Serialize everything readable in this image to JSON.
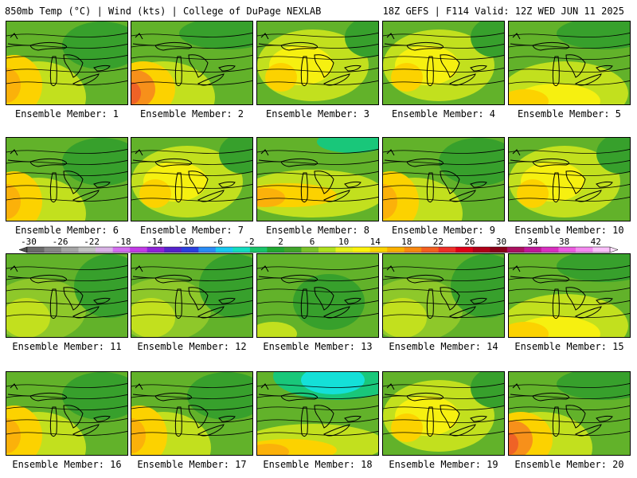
{
  "header": {
    "left": "850mb Temp (°C) | Wind (kts) | College of DuPage NEXLAB",
    "right": "18Z GEFS | F114 Valid: 12Z WED JUN 11 2025"
  },
  "members": [
    {
      "label": "Ensemble Member: 1",
      "scheme": "warm-west"
    },
    {
      "label": "Ensemble Member: 2",
      "scheme": "hot-west"
    },
    {
      "label": "Ensemble Member: 3",
      "scheme": "warm-center"
    },
    {
      "label": "Ensemble Member: 4",
      "scheme": "warm-center"
    },
    {
      "label": "Ensemble Member: 5",
      "scheme": "warm-south"
    },
    {
      "label": "Ensemble Member: 6",
      "scheme": "warm-west"
    },
    {
      "label": "Ensemble Member: 7",
      "scheme": "warm-center"
    },
    {
      "label": "Ensemble Member: 8",
      "scheme": "warm-band"
    },
    {
      "label": "Ensemble Member: 9",
      "scheme": "warm-west"
    },
    {
      "label": "Ensemble Member: 10",
      "scheme": "warm-center"
    },
    {
      "label": "Ensemble Member: 11",
      "scheme": "mild"
    },
    {
      "label": "Ensemble Member: 12",
      "scheme": "mild"
    },
    {
      "label": "Ensemble Member: 13",
      "scheme": "cool"
    },
    {
      "label": "Ensemble Member: 14",
      "scheme": "mild"
    },
    {
      "label": "Ensemble Member: 15",
      "scheme": "warm-south"
    },
    {
      "label": "Ensemble Member: 16",
      "scheme": "warm-west"
    },
    {
      "label": "Ensemble Member: 17",
      "scheme": "warm-west"
    },
    {
      "label": "Ensemble Member: 18",
      "scheme": "cool-north-warm-south"
    },
    {
      "label": "Ensemble Member: 19",
      "scheme": "warm-center"
    },
    {
      "label": "Ensemble Member: 20",
      "scheme": "hot-west"
    }
  ],
  "colorbar": {
    "tick_labels": [
      "-30",
      "-26",
      "-22",
      "-18",
      "-14",
      "-10",
      "-6",
      "-2",
      "2",
      "6",
      "10",
      "14",
      "18",
      "22",
      "26",
      "30",
      "34",
      "38",
      "42"
    ],
    "colors": [
      "#6b6b6b",
      "#888888",
      "#a5a5a5",
      "#c1c1c1",
      "#d9b3e6",
      "#d36ef0",
      "#c23ce6",
      "#8f22d9",
      "#5522cc",
      "#2b40e0",
      "#2a8cf5",
      "#18c8f0",
      "#14ddc0",
      "#19c46a",
      "#21a832",
      "#3fa52a",
      "#7ac22a",
      "#aee01e",
      "#e6f01a",
      "#fbf20c",
      "#fbd400",
      "#fbb000",
      "#f98a10",
      "#f46020",
      "#ef3028",
      "#e00018",
      "#b00018",
      "#8a0018",
      "#aa1060",
      "#c0189a",
      "#d830c0",
      "#ec5ce0",
      "#f48af0",
      "#fac0fa"
    ]
  },
  "palette": {
    "cyan": "#14e0d8",
    "teal": "#19c77a",
    "green_dk": "#37a02c",
    "green": "#62b22a",
    "green_lt": "#8ec82a",
    "yellowgreen": "#c2e01e",
    "yellow": "#f6f010",
    "gold": "#fcd200",
    "orange_lt": "#fbb10a",
    "orange": "#f7901a",
    "red_orange": "#ef6226"
  }
}
